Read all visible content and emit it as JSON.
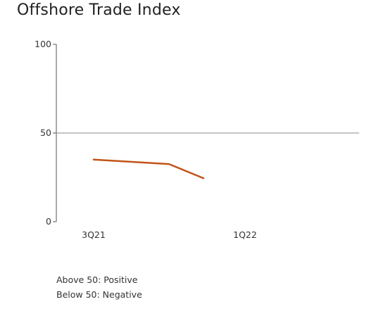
{
  "title": "Offshore Trade Index",
  "chart_data": {
    "type": "line",
    "title": "Offshore Trade Index",
    "x_labels": [
      "3Q21",
      "1Q22"
    ],
    "ylim": [
      0,
      100
    ],
    "yticks": [
      0,
      50,
      100
    ],
    "reference_line": 50,
    "series": [
      {
        "color": "#c0541a",
        "values": [
          {
            "x": "3Q21",
            "y": 35
          },
          {
            "x": "4Q21",
            "y": 32.5
          },
          {
            "x": "4Q21 (late)",
            "y": 24.5
          }
        ]
      }
    ],
    "grid": false
  },
  "notes": {
    "above": "Above 50: Positive",
    "below": "Below 50: Negative"
  }
}
